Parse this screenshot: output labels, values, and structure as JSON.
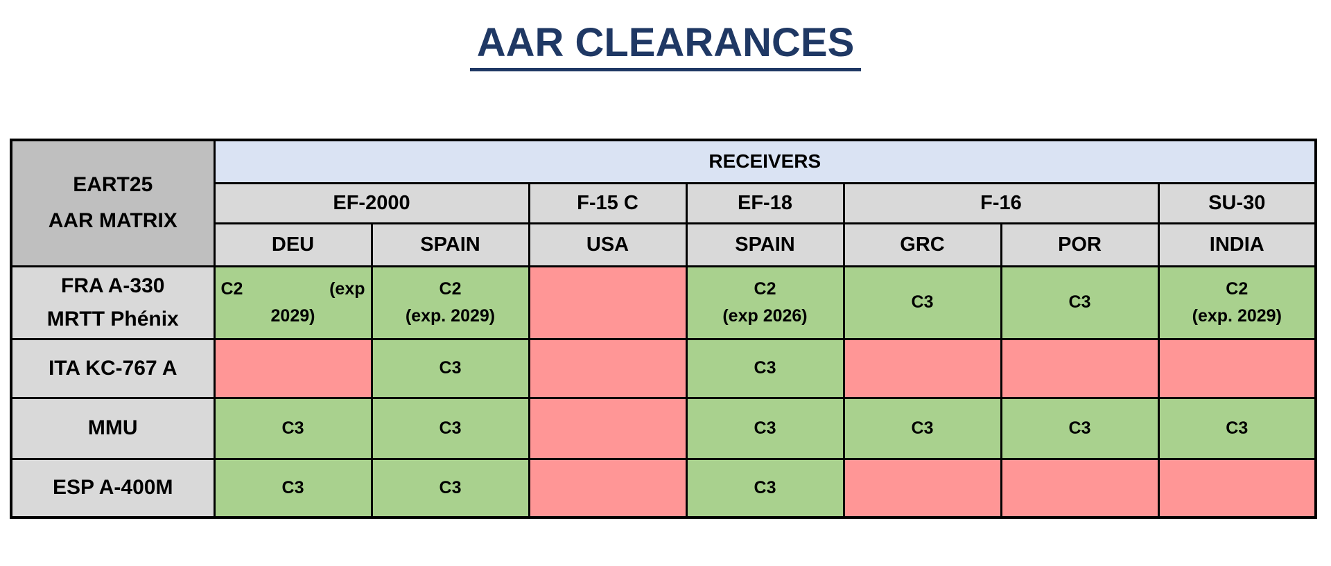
{
  "title": "AAR CLEARANCES",
  "matrix": {
    "corner": {
      "lines": [
        "EART25",
        "AAR MATRIX"
      ]
    },
    "receivers_header": "RECEIVERS",
    "aircraft_groups": [
      {
        "label": "EF-2000",
        "span": 2
      },
      {
        "label": "F-15 C",
        "span": 1
      },
      {
        "label": "EF-18",
        "span": 1
      },
      {
        "label": "F-16",
        "span": 2
      },
      {
        "label": "SU-30",
        "span": 1
      }
    ],
    "countries": [
      "DEU",
      "SPAIN",
      "USA",
      "SPAIN",
      "GRC",
      "POR",
      "INDIA"
    ],
    "tankers": [
      {
        "name": "FRA A-330 MRTT Phénix",
        "name_lines": [
          "FRA A-330",
          "MRTT Phénix"
        ],
        "clearances": [
          {
            "cleared": true,
            "label": "C2 (exp 2029)",
            "lines": [
              "C2|(exp",
              "2029)"
            ]
          },
          {
            "cleared": true,
            "label": "C2 (exp. 2029)",
            "lines": [
              "C2",
              "(exp. 2029)"
            ]
          },
          {
            "cleared": false,
            "label": "",
            "lines": []
          },
          {
            "cleared": true,
            "label": "C2 (exp 2026)",
            "lines": [
              "C2",
              "(exp 2026)"
            ]
          },
          {
            "cleared": true,
            "label": "C3",
            "lines": [
              "C3"
            ]
          },
          {
            "cleared": true,
            "label": "C3",
            "lines": [
              "C3"
            ]
          },
          {
            "cleared": true,
            "label": "C2 (exp. 2029)",
            "lines": [
              "C2",
              "(exp. 2029)"
            ]
          }
        ]
      },
      {
        "name": "ITA KC-767 A",
        "name_lines": [
          "ITA KC-767 A"
        ],
        "clearances": [
          {
            "cleared": false,
            "label": "",
            "lines": []
          },
          {
            "cleared": true,
            "label": "C3",
            "lines": [
              "C3"
            ]
          },
          {
            "cleared": false,
            "label": "",
            "lines": []
          },
          {
            "cleared": true,
            "label": "C3",
            "lines": [
              "C3"
            ]
          },
          {
            "cleared": false,
            "label": "",
            "lines": []
          },
          {
            "cleared": false,
            "label": "",
            "lines": []
          },
          {
            "cleared": false,
            "label": "",
            "lines": []
          }
        ]
      },
      {
        "name": "MMU",
        "name_lines": [
          "MMU"
        ],
        "clearances": [
          {
            "cleared": true,
            "label": "C3",
            "lines": [
              "C3"
            ]
          },
          {
            "cleared": true,
            "label": "C3",
            "lines": [
              "C3"
            ]
          },
          {
            "cleared": false,
            "label": "",
            "lines": []
          },
          {
            "cleared": true,
            "label": "C3",
            "lines": [
              "C3"
            ]
          },
          {
            "cleared": true,
            "label": "C3",
            "lines": [
              "C3"
            ]
          },
          {
            "cleared": true,
            "label": "C3",
            "lines": [
              "C3"
            ]
          },
          {
            "cleared": true,
            "label": "C3",
            "lines": [
              "C3"
            ]
          }
        ]
      },
      {
        "name": "ESP A-400M",
        "name_lines": [
          "ESP A-400M"
        ],
        "clearances": [
          {
            "cleared": true,
            "label": "C3",
            "lines": [
              "C3"
            ]
          },
          {
            "cleared": true,
            "label": "C3",
            "lines": [
              "C3"
            ]
          },
          {
            "cleared": false,
            "label": "",
            "lines": []
          },
          {
            "cleared": true,
            "label": "C3",
            "lines": [
              "C3"
            ]
          },
          {
            "cleared": false,
            "label": "",
            "lines": []
          },
          {
            "cleared": false,
            "label": "",
            "lines": []
          },
          {
            "cleared": false,
            "label": "",
            "lines": []
          }
        ]
      }
    ],
    "colors": {
      "cleared_green": "#a9d18e",
      "not_cleared_red": "#ff9696",
      "receivers_blue": "#dae3f3",
      "header_gray": "#d9d9d9",
      "corner_gray": "#bfbfbf",
      "title_navy": "#1f3864"
    }
  }
}
